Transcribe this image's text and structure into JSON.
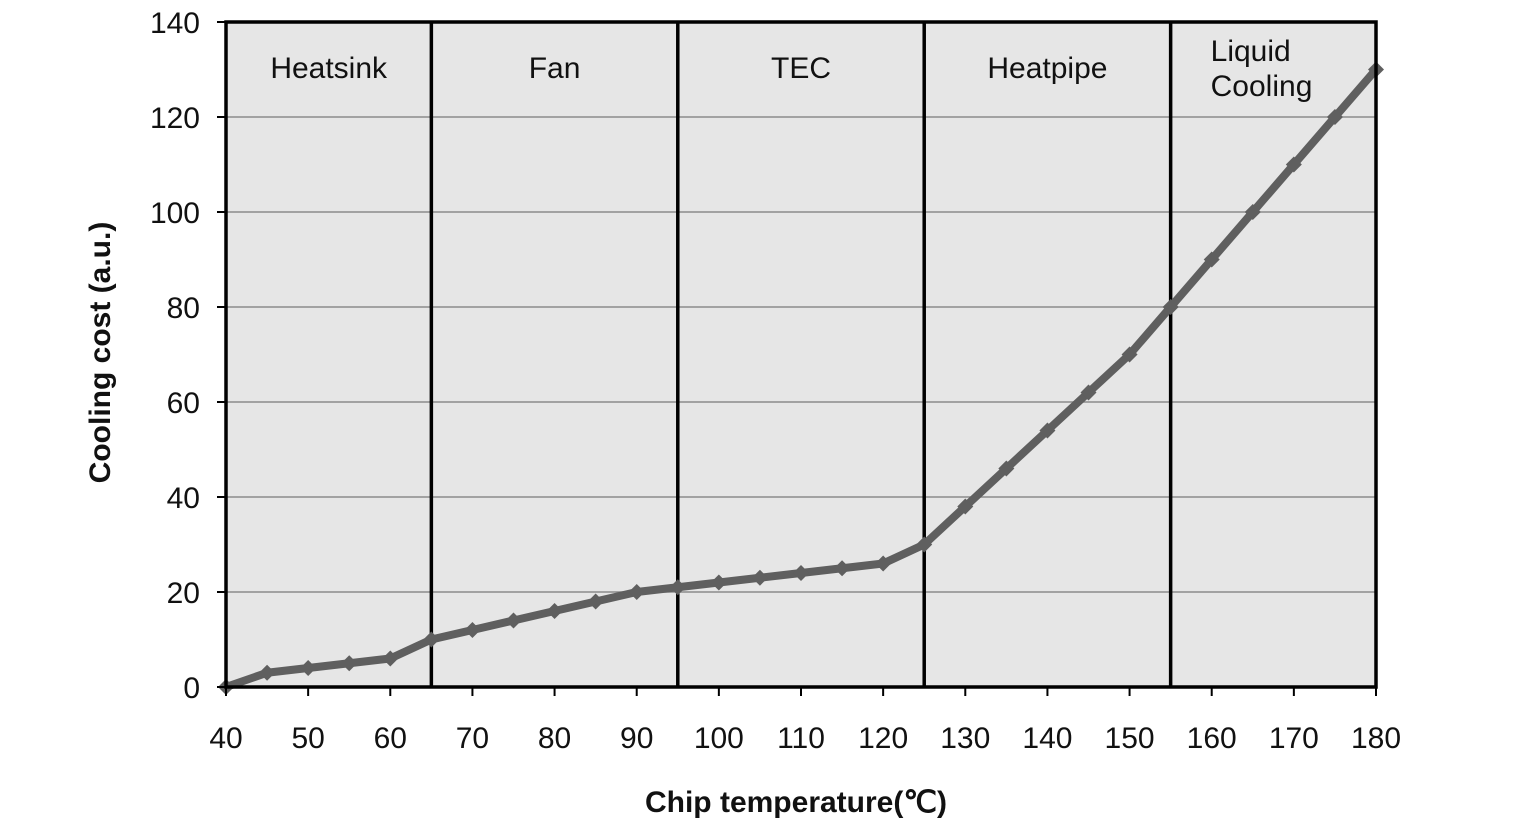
{
  "chart_data": {
    "type": "line",
    "title": "",
    "xlabel": "Chip temperature(℃)",
    "ylabel": "Cooling cost (a.u.)",
    "xlim": [
      40,
      180
    ],
    "ylim": [
      0,
      140
    ],
    "x_ticks": [
      40,
      50,
      60,
      70,
      80,
      90,
      100,
      110,
      120,
      130,
      140,
      150,
      160,
      170,
      180
    ],
    "y_ticks": [
      0,
      20,
      40,
      60,
      80,
      100,
      120,
      140
    ],
    "grid": "horizontal",
    "legend": "none",
    "series": [
      {
        "x": [
          40,
          45,
          50,
          55,
          60,
          65,
          70,
          75,
          80,
          85,
          90,
          95,
          100,
          105,
          110,
          115,
          120,
          125,
          130,
          135,
          140,
          145,
          150,
          155,
          160,
          165,
          170,
          175,
          180
        ],
        "y": [
          0,
          3,
          4,
          5,
          6,
          10,
          12,
          14,
          16,
          18,
          20,
          21,
          22,
          23,
          24,
          25,
          26,
          30,
          38,
          46,
          54,
          62,
          70,
          80,
          90,
          100,
          110,
          120,
          130
        ]
      }
    ],
    "regions": [
      {
        "label": "Heatsink",
        "from": 40,
        "to": 65
      },
      {
        "label": "Fan",
        "from": 65,
        "to": 95
      },
      {
        "label": "TEC",
        "from": 95,
        "to": 125
      },
      {
        "label": "Heatpipe",
        "from": 125,
        "to": 155
      },
      {
        "label": "Liquid\nCooling",
        "from": 155,
        "to": 180
      }
    ],
    "colors": {
      "plot_background": "#e6e6e6",
      "line": "#5f5f5f",
      "gridline": "#8c8c8c",
      "divider": "#000000"
    }
  }
}
